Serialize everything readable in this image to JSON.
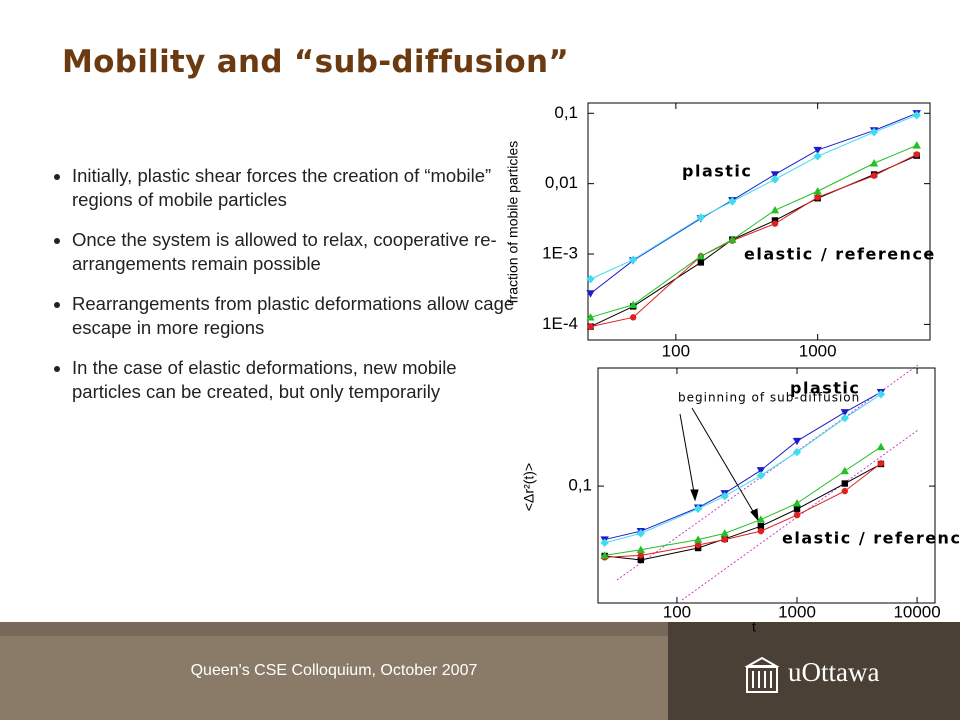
{
  "title": "Mobility and “sub-diffusion”",
  "bullets": [
    "Initially, plastic shear forces the creation of “mobile” regions of mobile particles",
    "Once the system is allowed to relax, cooperative re-arrangements remain possible",
    "Rearrangements from plastic deformations allow cage escape in more regions",
    "In the case of elastic deformations, new mobile particles can be created, but only temporarily"
  ],
  "footer": "Queen's CSE Colloquium, October 2007",
  "logo_text": "uOttawa",
  "chart_data": [
    {
      "type": "line",
      "xscale": "log",
      "yscale": "log",
      "ylabel": "fraction of mobile particles",
      "annotations": [
        "plastic",
        "elastic / reference"
      ],
      "x": [
        25,
        50,
        150,
        250,
        500,
        1000,
        2500,
        5000
      ],
      "xlim": [
        24,
        6200
      ],
      "xticks": [
        100,
        1000
      ],
      "ylim": [
        6e-05,
        0.14
      ],
      "yticks": [
        {
          "value": 0.1,
          "label": "0,1"
        },
        {
          "value": 0.01,
          "label": "0,01"
        },
        {
          "value": 0.001,
          "label": "1E-3"
        },
        {
          "value": 0.0001,
          "label": "1E-4"
        }
      ],
      "series": [
        {
          "color": "#000000",
          "marker": "square",
          "values": [
            9.3e-05,
            0.00018,
            0.00076,
            0.0016,
            0.003,
            0.0062,
            0.0135,
            0.025
          ]
        },
        {
          "color": "#e02020",
          "marker": "circle",
          "values": [
            9.3e-05,
            0.000126,
            0.00093,
            0.00155,
            0.0027,
            0.0064,
            0.013,
            0.026
          ]
        },
        {
          "color": "#22c022",
          "marker": "triangle-up",
          "values": [
            0.000126,
            0.00019,
            0.00093,
            0.0016,
            0.0042,
            0.0078,
            0.0195,
            0.035
          ]
        },
        {
          "color": "#1c1ccc",
          "marker": "triangle-down",
          "values": [
            0.000275,
            0.00081,
            0.0032,
            0.0058,
            0.0135,
            0.03,
            0.057,
            0.1
          ]
        },
        {
          "color": "#3fdcf0",
          "marker": "diamond",
          "values": [
            0.00044,
            0.00083,
            0.0033,
            0.0056,
            0.0115,
            0.0245,
            0.054,
            0.094
          ]
        }
      ]
    },
    {
      "type": "line",
      "xscale": "log",
      "yscale": "log",
      "ylabel": "<Δr²(t)>",
      "xlabel": "t",
      "annotations": [
        "plastic",
        "elastic / reference",
        "beginning of sub-diffusion"
      ],
      "x": [
        25,
        50,
        150,
        250,
        500,
        1000,
        2500,
        5000
      ],
      "xlim": [
        22,
        14100
      ],
      "xticks": [
        100,
        1000,
        10000
      ],
      "ylim": [
        0.026,
        0.39
      ],
      "yticks": [
        {
          "value": 0.1,
          "label": "0,1"
        }
      ],
      "series": [
        {
          "color": "#000000",
          "marker": "square",
          "values": [
            0.0447,
            0.0427,
            0.049,
            0.0544,
            0.063,
            0.0767,
            0.103,
            0.129
          ]
        },
        {
          "color": "#e02020",
          "marker": "circle",
          "values": [
            0.044,
            0.045,
            0.0507,
            0.054,
            0.0595,
            0.0716,
            0.0944,
            0.13
          ]
        },
        {
          "color": "#22c022",
          "marker": "triangle-up",
          "values": [
            0.045,
            0.048,
            0.054,
            0.058,
            0.068,
            0.082,
            0.119,
            0.157
          ]
        },
        {
          "color": "#1c1ccc",
          "marker": "triangle-down",
          "values": [
            0.054,
            0.0595,
            0.078,
            0.092,
            0.12,
            0.168,
            0.234,
            0.295
          ]
        },
        {
          "color": "#3fdcf0",
          "marker": "diamond",
          "values": [
            0.052,
            0.058,
            0.077,
            0.089,
            0.113,
            0.148,
            0.219,
            0.288
          ]
        }
      ]
    }
  ]
}
